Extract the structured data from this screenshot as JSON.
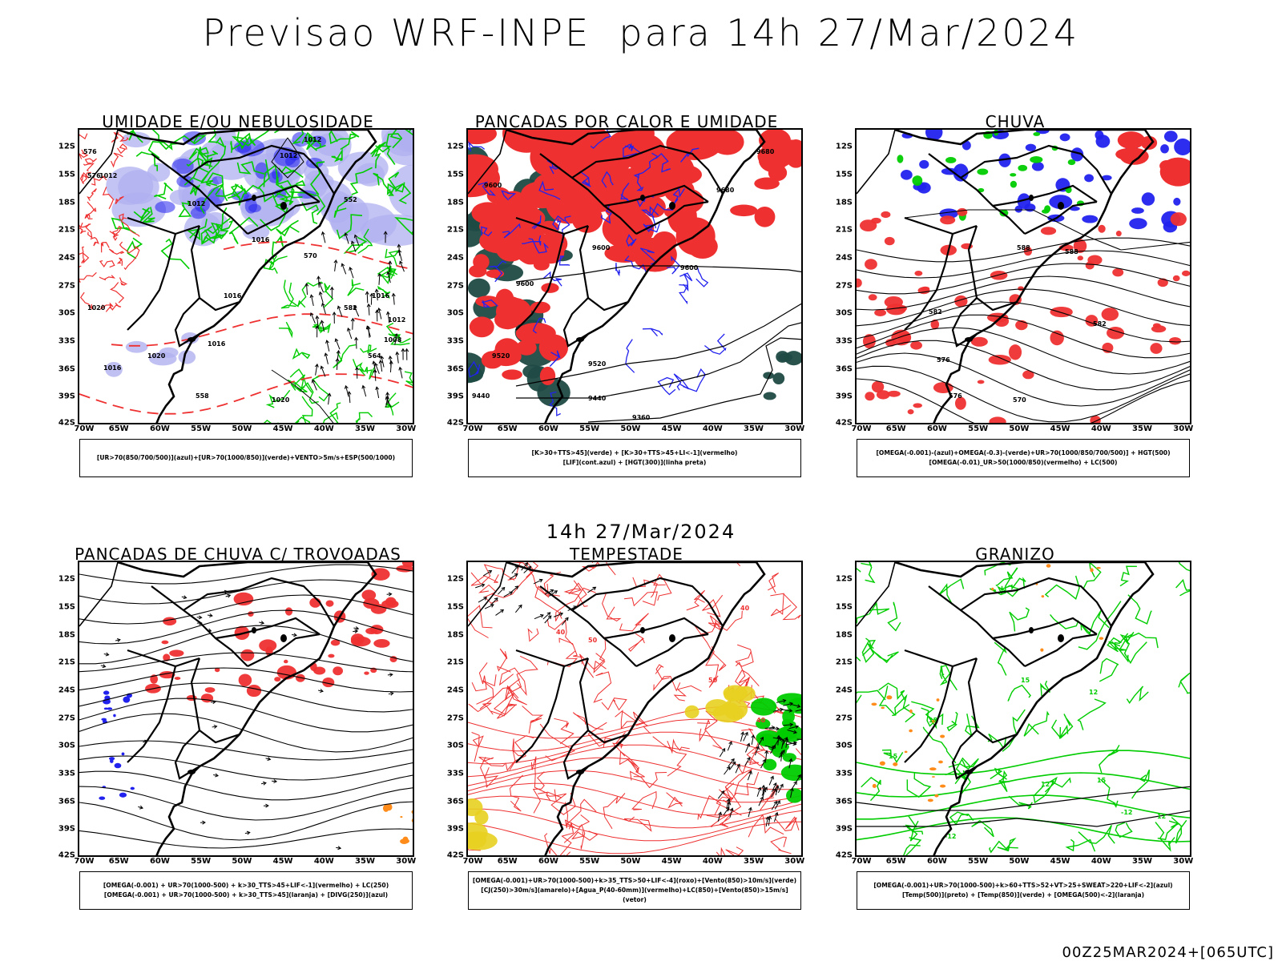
{
  "header": {
    "title": "Previsao WRF-INPE  para 14h 27/Mar/2024",
    "mid_date": "14h 27/Mar/2024",
    "footer_code": "00Z25MAR2024+[065UTC]"
  },
  "axes": {
    "lat_labels": [
      "12S",
      "15S",
      "18S",
      "21S",
      "24S",
      "27S",
      "30S",
      "33S",
      "36S",
      "39S",
      "42S"
    ],
    "lon_labels": [
      "70W",
      "65W",
      "60W",
      "55W",
      "50W",
      "45W",
      "40W",
      "35W",
      "30W"
    ]
  },
  "colors": {
    "blue": "#2222ee",
    "green": "#00cc00",
    "red": "#ee3030",
    "lavender": "#b0b0f0",
    "dark_teal": "#1f4a44",
    "yellow": "#e8d020",
    "orange": "#ff8c1a"
  },
  "panels": [
    {
      "id": "umidade",
      "title": "UMIDADE E/OU NEBULOSIDADE",
      "legend": [
        "[UR>70(850/700/500)](azul)+[UR>70(1000/850)](verde)+VENTO>5m/s+ESP(500/1000)"
      ],
      "contour_labels": [
        "1012",
        "1012",
        "1012",
        "1012",
        "1016",
        "1016",
        "1016",
        "1020",
        "1020",
        "1008",
        "1012",
        "1016",
        "1020",
        "1016",
        "576",
        "576",
        "582",
        "564",
        "558",
        "552",
        "570"
      ]
    },
    {
      "id": "pancadas-calor",
      "title": "PANCADAS POR CALOR E UMIDADE",
      "legend": [
        "[K>30+TTS>45](verde) + [K>30+TTS>45+LI<-1](vermelho)",
        "[LIF](cont.azul) + [HGT(300)](linha preta)"
      ],
      "contour_labels": [
        "9680",
        "9680",
        "9600",
        "9600",
        "9600",
        "9600",
        "9520",
        "9520",
        "9440",
        "9440",
        "9360"
      ]
    },
    {
      "id": "chuva",
      "title": "CHUVA",
      "legend": [
        "[OMEGA(-0.001)-(azul)+OMEGA(-0.3)-(verde)+UR>70(1000/850/700/500)] + HGT(500)",
        "[OMEGA(-0.01)_UR>50(1000/850)(vermelho) + LC(500)"
      ],
      "contour_labels": [
        "588",
        "588",
        "582",
        "582",
        "576",
        "576",
        "570"
      ]
    },
    {
      "id": "pancadas-trovoadas",
      "title": "PANCADAS DE CHUVA C/ TROVOADAS",
      "legend": [
        "[OMEGA(-0.001) + UR>70(1000-500) + k>30_TTS>45+LIF<-1](vermelho) + LC(250)",
        "[OMEGA(-0.001) + UR>70(1000-500) + k>30_TTS>45](laranja) + [DIVG(250)](azul)"
      ],
      "contour_labels": []
    },
    {
      "id": "tempestade",
      "title": "TEMPESTADE",
      "legend": [
        "[OMEGA(-0.001)+UR>70(1000-500)+k>35_TTS>50+LIF<-4](roxo)+[Vento(850)>10m/s](verde)",
        "[CJ(250)>30m/s](amarelo)+[Agua_P(40-60mm)](vermelho)+LC(850)+[Vento(850)>15m/s](vetor)"
      ],
      "contour_labels": [
        "40",
        "50",
        "40",
        "50",
        "40"
      ]
    },
    {
      "id": "granizo",
      "title": "GRANIZO",
      "legend": [
        "[OMEGA(-0.001)+UR>70(1000-500)+k>60+TTS>52+VT>25+SWEAT>220+LIF<-2](azul)",
        "[Temp(500)](preto) + [Temp(850)](verde) + [OMEGA(500)<-2](laranja)"
      ],
      "contour_labels": [
        "15",
        "15",
        "12",
        "15",
        "12",
        "-12",
        "-12",
        "15",
        "12"
      ]
    }
  ]
}
